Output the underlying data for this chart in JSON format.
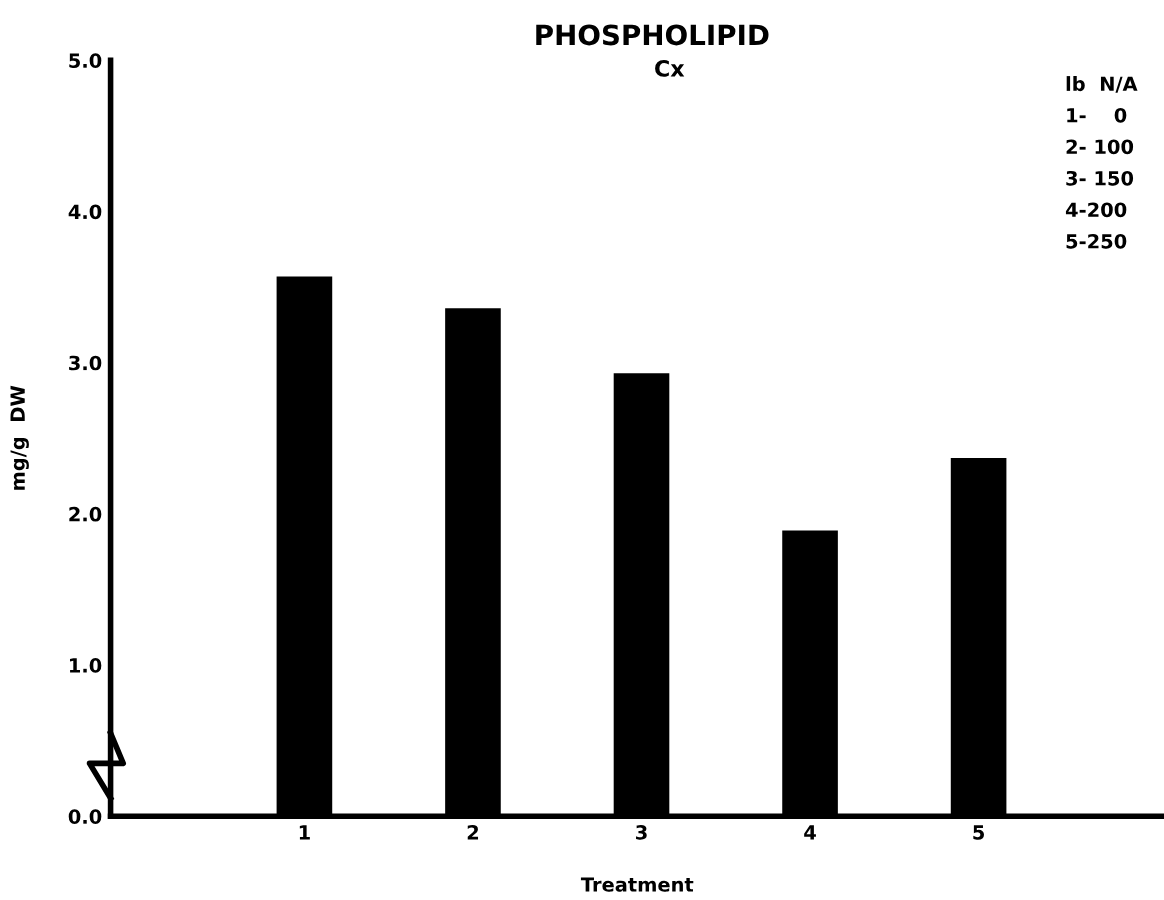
{
  "chart_data": {
    "type": "bar",
    "title": "PHOSPHOLIPID",
    "subtitle": "Cx",
    "xlabel": "Treatment",
    "ylabel": "mg/g  DW",
    "categories": [
      "1",
      "2",
      "3",
      "4",
      "5"
    ],
    "values": [
      3.57,
      3.36,
      2.93,
      1.89,
      2.37
    ],
    "color": "#000000",
    "ylim": [
      0,
      5
    ],
    "yticks": [
      {
        "value": 0,
        "label": "0.0"
      },
      {
        "value": 1,
        "label": "1.0"
      },
      {
        "value": 2,
        "label": "2.0"
      },
      {
        "value": 3,
        "label": "3.0"
      },
      {
        "value": 4,
        "label": "4.0"
      },
      {
        "value": 5,
        "label": "5.0"
      }
    ],
    "annotations": [
      "lb  N/A",
      "1-    0",
      "2- 100",
      "3- 150",
      "4-200",
      "5-250"
    ],
    "grid": false,
    "legend": false
  }
}
